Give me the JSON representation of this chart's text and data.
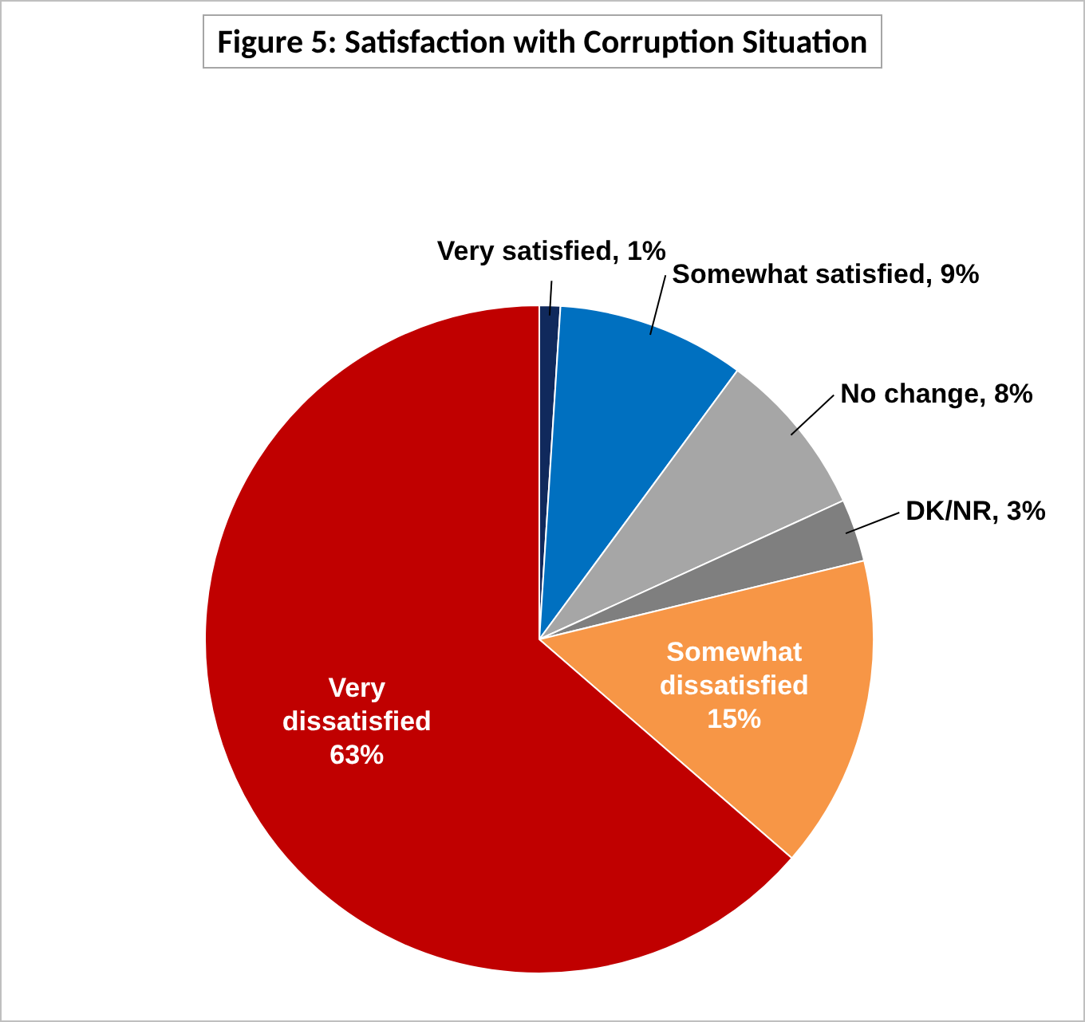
{
  "chart_data": {
    "type": "pie",
    "title": "Figure 5: Satisfaction with Corruption Situation",
    "categories": [
      "Very satisfied",
      "Somewhat satisfied",
      "No change",
      "DK/NR",
      "Somewhat dissatisfied",
      "Very dissatisfied"
    ],
    "value_labels": [
      "1%",
      "9%",
      "8%",
      "3%",
      "15%",
      "63%"
    ],
    "values": [
      1,
      9,
      8,
      3,
      15,
      63
    ],
    "colors": [
      "#10295c",
      "#0070c0",
      "#a6a6a6",
      "#7f7f7f",
      "#f79646",
      "#c00000"
    ],
    "legend": false
  }
}
